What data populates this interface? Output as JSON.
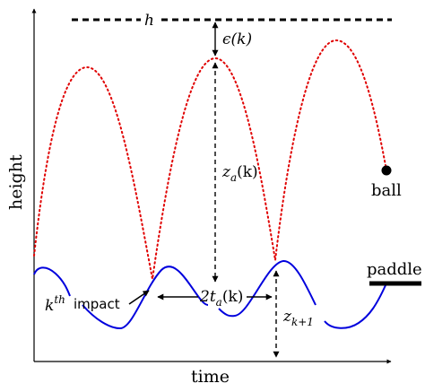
{
  "labels": {
    "h": "h",
    "epsilon": "ϵ(k)",
    "z_a": "z",
    "z_a_sub": "a",
    "z_a_arg": "(k)",
    "ball": "ball",
    "paddle": "paddle",
    "kth_k": "k",
    "kth_sup": "th",
    "impact": "impact",
    "two_t_a_prefix": "2t",
    "two_t_a_sub": "a",
    "two_t_a_arg": "(k)",
    "z_k1": "z",
    "z_k1_sub": "k+1",
    "height": "height",
    "time": "time"
  },
  "colors": {
    "ball_trajectory": "#e00000",
    "paddle_trajectory": "#0000dd",
    "annotation": "#000000"
  }
}
